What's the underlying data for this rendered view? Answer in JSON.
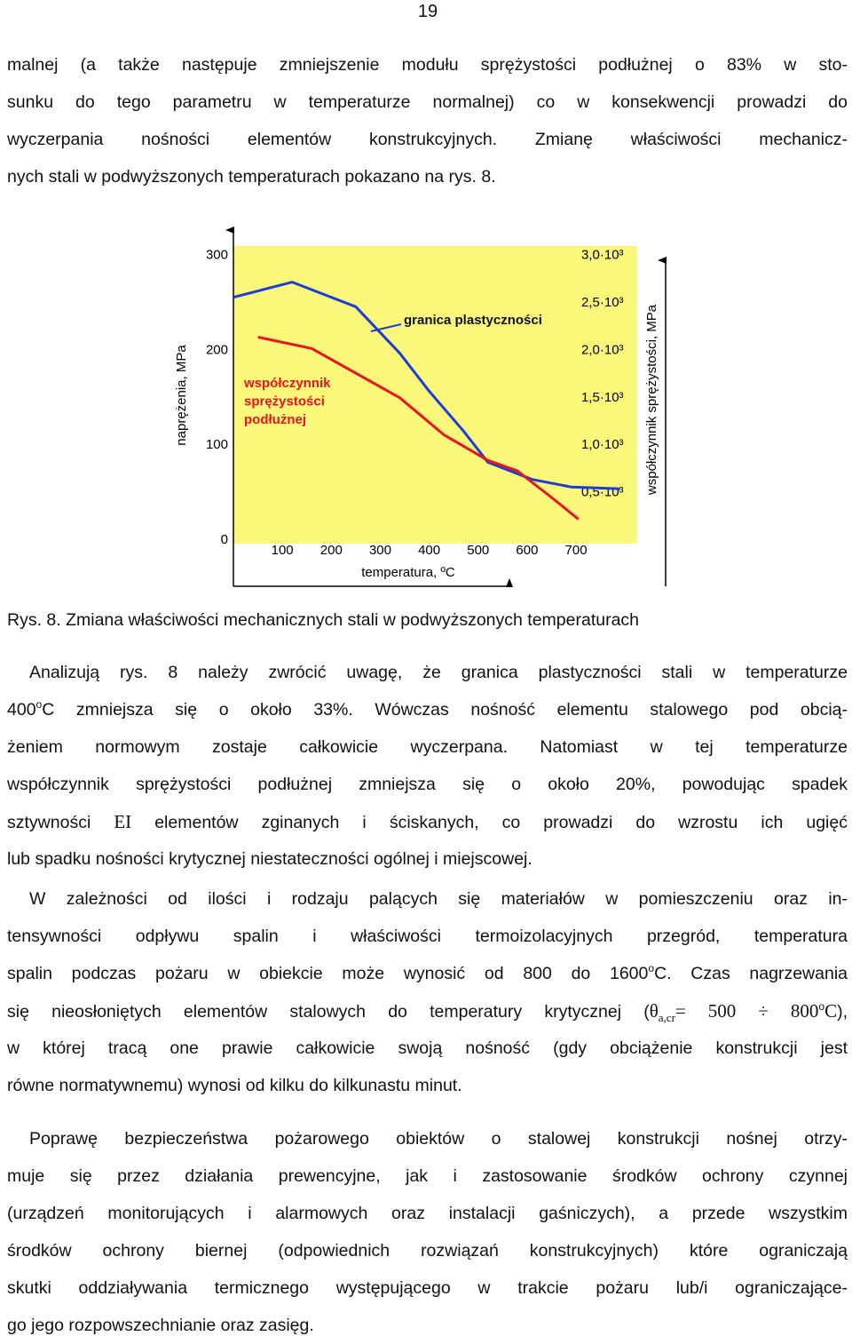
{
  "page_number": "19",
  "paragraphs": [
    {
      "lines": [
        [
          "malnej (a także następuje zmniejszenie modułu sprężystości podłużnej o 83% w sto-"
        ],
        [
          "sunku do tego parametru w temperaturze normalnej) co w konsekwencji prowadzi do"
        ],
        [
          "wyczerpania nośności elementów konstrukcyjnych. Zmianę właściwości mechanicz-"
        ],
        [
          "nych stali w podwyższonych temperaturach pokazano na rys. 8."
        ]
      ]
    },
    {
      "lines": [
        [
          "Analizują rys. 8 należy zwrócić uwagę, że granica plastyczności stali w temperaturze"
        ],
        [
          "400",
          {
            "text": "o",
            "style": "sup"
          },
          "C zmniejsza się o około 33%. Wówczas nośność elementu stalowego pod obcią-"
        ],
        [
          "żeniem normowym zostaje całkowicie wyczerpana. Natomiast w tej temperaturze"
        ],
        [
          "współczynnik sprężystości podłużnej zmniejsza się o około 20%, powodując spadek"
        ],
        [
          "sztywności ",
          {
            "text": "EI",
            "style": "math"
          },
          " elementów zginanych i ściskanych, co prowadzi do wzrostu ich ugięć"
        ],
        [
          "lub spadku nośności krytycznej niestateczności ogólnej i miejscowej."
        ]
      ]
    },
    {
      "lines": [
        [
          "W zależności od ilości i rodzaju palących się materiałów w pomieszczeniu oraz in-"
        ],
        [
          "tensywności odpływu spalin i właściwości termoizolacyjnych przegród, temperatura"
        ],
        [
          "spalin podczas pożaru w obiekcie może wynosić od 800 do 1600",
          {
            "text": "o",
            "style": "sup"
          },
          "C. Czas nagrzewania"
        ],
        [
          "się nieosłoniętych elementów stalowych do temperatury krytycznej (",
          {
            "text": "θ",
            "style": "math"
          },
          {
            "text": "a,cr",
            "style": "sub"
          },
          {
            "text": "= 500 ÷ 800",
            "style": "math"
          },
          {
            "text": "o",
            "style": "sup"
          },
          {
            "text": "C",
            "style": "math"
          },
          "),"
        ],
        [
          "w której tracą one prawie całkowicie swoją nośność (gdy obciążenie konstrukcji jest"
        ],
        [
          "równe normatywnemu) wynosi od kilku do kilkunastu minut."
        ]
      ]
    },
    {
      "lines": [
        [
          "Poprawę bezpieczeństwa pożarowego obiektów o stalowej konstrukcji nośnej otrzy-"
        ],
        [
          "muje się przez działania prewencyjne, jak i zastosowanie środków ochrony czynnej"
        ],
        [
          "(urządzeń monitorujących i alarmowych oraz instalacji gaśniczych), a przede wszystkim"
        ],
        [
          "środków ochrony biernej (odpowiednich rozwiązań konstrukcyjnych) które ograniczają"
        ],
        [
          "skutki oddziaływania termicznego występującego w trakcie pożaru lub/i ograniczające-"
        ],
        [
          "go jego rozpowszechnianie oraz zasięg."
        ]
      ]
    }
  ],
  "caption": "Rys. 8. Zmiana właściwości mechanicznych stali w podwyższonych temperaturach",
  "chart_data": {
    "type": "line",
    "x_label": "temperatura, ºC",
    "y_label": "naprężenia, MPa",
    "y2_label": "współczynnik sprężystości, MPa",
    "xlim": [
      0,
      825
    ],
    "xticks": [
      100,
      200,
      300,
      400,
      500,
      600,
      700
    ],
    "ylim": [
      0,
      310
    ],
    "yticks": [
      0,
      100,
      200,
      300
    ],
    "y2lim": [
      0,
      3100
    ],
    "y2ticks": [
      {
        "value": 500,
        "label": "0,5·10³"
      },
      {
        "value": 1000,
        "label": "1,0·10³"
      },
      {
        "value": 1500,
        "label": "1,5·10³"
      },
      {
        "value": 2000,
        "label": "2,0·10³"
      },
      {
        "value": 2500,
        "label": "2,5·10³"
      },
      {
        "value": 3000,
        "label": "3,0·10³"
      }
    ],
    "background": "#fbf77a",
    "series": [
      {
        "label": [
          "granica plastyczności"
        ],
        "color": "#1b3fd6",
        "x": [
          0,
          120,
          250,
          340,
          400,
          470,
          520,
          610,
          690,
          790
        ],
        "values": [
          256,
          272,
          246,
          197,
          157,
          115,
          82,
          64,
          56,
          54
        ]
      },
      {
        "label": [
          "współczynnik",
          "sprężystości",
          "podłużnej"
        ],
        "color": "#e8141e",
        "axis": "y2",
        "x": [
          50,
          160,
          250,
          340,
          430,
          520,
          580,
          650,
          705
        ],
        "values": [
          2140,
          2020,
          1760,
          1500,
          1110,
          840,
          730,
          450,
          220
        ]
      }
    ]
  }
}
